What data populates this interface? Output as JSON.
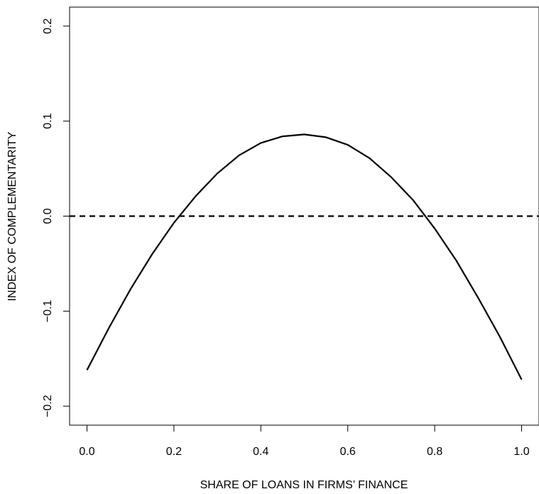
{
  "chart_data": {
    "type": "line",
    "xlabel": "SHARE OF LOANS IN FIRMS’ FINANCE",
    "ylabel": "INDEX OF COMPLEMENTARITY",
    "xlim": [
      -0.04,
      1.04
    ],
    "ylim": [
      -0.22,
      0.22
    ],
    "x_ticks": [
      0.0,
      0.2,
      0.4,
      0.6,
      0.8,
      1.0
    ],
    "x_tick_labels": [
      "0.0",
      "0.2",
      "0.4",
      "0.6",
      "0.8",
      "1.0"
    ],
    "y_ticks": [
      -0.2,
      -0.1,
      0.0,
      0.1,
      0.2
    ],
    "y_tick_labels": [
      "−0.2",
      "−0.1",
      "0.0",
      "0.1",
      "0.2"
    ],
    "grid": false,
    "series": [
      {
        "style": "solid",
        "color": "#000000",
        "x": [
          0.0,
          0.05,
          0.1,
          0.15,
          0.2,
          0.25,
          0.3,
          0.35,
          0.4,
          0.45,
          0.5,
          0.55,
          0.6,
          0.65,
          0.7,
          0.75,
          0.8,
          0.85,
          0.9,
          0.95,
          1.0
        ],
        "y": [
          -0.162,
          -0.118,
          -0.077,
          -0.04,
          -0.007,
          0.021,
          0.045,
          0.064,
          0.077,
          0.084,
          0.086,
          0.083,
          0.075,
          0.061,
          0.041,
          0.017,
          -0.013,
          -0.047,
          -0.086,
          -0.127,
          -0.172
        ]
      },
      {
        "style": "dashed",
        "color": "#000000",
        "x": [
          -0.04,
          1.04
        ],
        "y": [
          0.0,
          0.0
        ]
      }
    ]
  }
}
